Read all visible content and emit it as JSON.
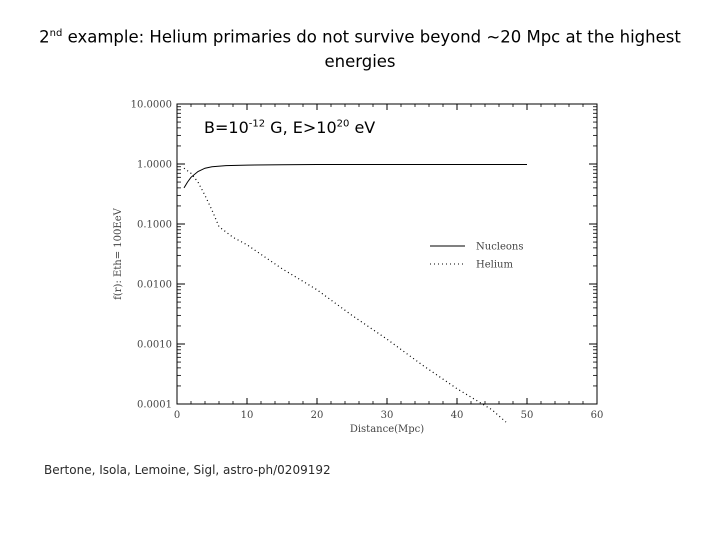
{
  "title": {
    "part1": "2",
    "sup": "nd",
    "part2": " example: Helium primaries do not survive beyond ~20 Mpc at the highest",
    "line2": "energies"
  },
  "annotation": {
    "a": "B=10",
    "b": "-12",
    "c": " G, E>10",
    "d": "20",
    "e": " eV"
  },
  "citation": "Bertone, Isola, Lemoine, Sigl, astro-ph/0209192",
  "chart_data": {
    "type": "line",
    "xlabel": "Distance(Mpc)",
    "ylabel": "f(r): Eth= 100EeV",
    "xlim": [
      0,
      60
    ],
    "ylim": [
      0.0001,
      10
    ],
    "yscale": "log",
    "x_ticks": [
      "0",
      "10",
      "20",
      "30",
      "40",
      "50",
      "60"
    ],
    "y_ticks": [
      "10.0000",
      "1.0000",
      "0.1000",
      "0.0100",
      "0.0010",
      "0.0001"
    ],
    "legend_position": "right",
    "series": [
      {
        "name": "Nucleons",
        "style": "solid",
        "x": [
          1,
          1.5,
          2,
          3,
          4,
          5,
          7,
          10,
          15,
          20,
          30,
          40,
          50
        ],
        "y": [
          0.4,
          0.5,
          0.6,
          0.75,
          0.85,
          0.9,
          0.94,
          0.96,
          0.97,
          0.98,
          0.98,
          0.98,
          0.98
        ]
      },
      {
        "name": "Helium",
        "style": "dotted",
        "x": [
          1,
          2,
          3,
          4,
          5,
          6,
          8,
          10,
          15,
          20,
          25,
          30,
          35,
          40,
          45,
          47
        ],
        "y": [
          0.85,
          0.7,
          0.5,
          0.3,
          0.17,
          0.09,
          0.06,
          0.045,
          0.018,
          0.008,
          0.003,
          0.0012,
          0.00045,
          0.00018,
          8e-05,
          5e-05
        ]
      }
    ]
  }
}
